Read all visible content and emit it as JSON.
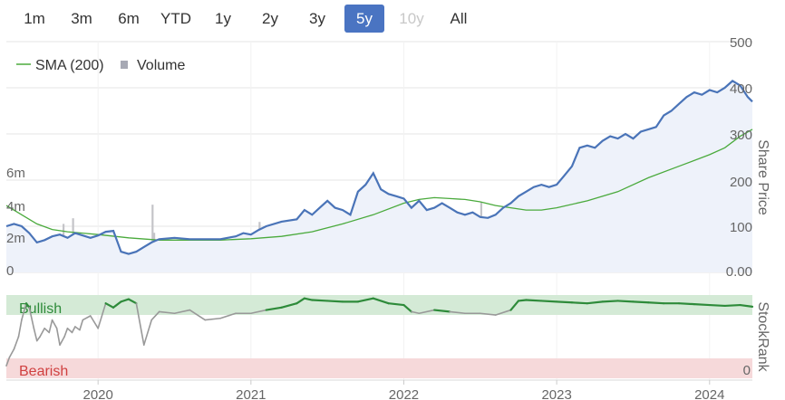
{
  "range_buttons": [
    {
      "label": "1m",
      "state": "normal"
    },
    {
      "label": "3m",
      "state": "normal"
    },
    {
      "label": "6m",
      "state": "normal"
    },
    {
      "label": "YTD",
      "state": "normal"
    },
    {
      "label": "1y",
      "state": "normal"
    },
    {
      "label": "2y",
      "state": "normal"
    },
    {
      "label": "3y",
      "state": "normal"
    },
    {
      "label": "5y",
      "state": "active"
    },
    {
      "label": "10y",
      "state": "disabled"
    },
    {
      "label": "All",
      "state": "normal"
    }
  ],
  "colors": {
    "price": "#4a74b8",
    "sma": "#4aaa3c",
    "volume": "#c4c4c8",
    "stockrank_line": "#999999",
    "stockrank_bullish_line": "#2e8b3a",
    "bullish_band": "#d4ead6",
    "bearish_band": "#f6d9da",
    "bullish_text": "#2e8b3a",
    "bearish_text": "#d04040",
    "active_button": "#4a74c2"
  },
  "chart_data": [
    {
      "type": "line",
      "title": "",
      "legend": [
        "SMA (200)",
        "Volume"
      ],
      "legend_position": "top-left",
      "y_axis_label": "Share Price",
      "y_ticks": [
        "500",
        "400",
        "300",
        "200",
        "100",
        "0.00"
      ],
      "ylim": [
        0,
        500
      ],
      "volume_ticks": [
        "6m",
        "4m",
        "2m",
        "0"
      ],
      "volume_ylim": [
        0,
        8
      ],
      "x_tick_labels": [
        "2020",
        "2021",
        "2022",
        "2023",
        "2024"
      ],
      "x_range": [
        2019.4,
        2024.28
      ],
      "series": [
        {
          "role": "price",
          "x": [
            2019.4,
            2019.45,
            2019.5,
            2019.55,
            2019.6,
            2019.65,
            2019.7,
            2019.75,
            2019.8,
            2019.85,
            2019.9,
            2019.95,
            2020.0,
            2020.05,
            2020.1,
            2020.15,
            2020.2,
            2020.25,
            2020.3,
            2020.35,
            2020.4,
            2020.5,
            2020.6,
            2020.7,
            2020.8,
            2020.9,
            2020.95,
            2021.0,
            2021.05,
            2021.1,
            2021.2,
            2021.3,
            2021.35,
            2021.4,
            2021.45,
            2021.5,
            2021.55,
            2021.6,
            2021.65,
            2021.7,
            2021.75,
            2021.8,
            2021.85,
            2021.9,
            2021.95,
            2022.0,
            2022.05,
            2022.1,
            2022.15,
            2022.2,
            2022.25,
            2022.3,
            2022.35,
            2022.4,
            2022.45,
            2022.5,
            2022.55,
            2022.6,
            2022.65,
            2022.7,
            2022.75,
            2022.8,
            2022.85,
            2022.9,
            2022.95,
            2023.0,
            2023.05,
            2023.1,
            2023.15,
            2023.2,
            2023.25,
            2023.3,
            2023.35,
            2023.4,
            2023.45,
            2023.5,
            2023.55,
            2023.6,
            2023.65,
            2023.7,
            2023.75,
            2023.8,
            2023.85,
            2023.9,
            2023.95,
            2024.0,
            2024.05,
            2024.1,
            2024.15,
            2024.2,
            2024.25,
            2024.28
          ],
          "y": [
            100,
            105,
            100,
            85,
            65,
            70,
            78,
            82,
            75,
            85,
            80,
            75,
            80,
            88,
            90,
            45,
            40,
            45,
            55,
            65,
            72,
            75,
            72,
            72,
            72,
            78,
            85,
            82,
            92,
            100,
            110,
            115,
            135,
            125,
            140,
            155,
            140,
            135,
            125,
            175,
            190,
            215,
            180,
            170,
            165,
            160,
            140,
            155,
            135,
            140,
            150,
            140,
            130,
            125,
            130,
            120,
            118,
            125,
            140,
            150,
            165,
            175,
            185,
            190,
            185,
            190,
            210,
            230,
            270,
            275,
            270,
            285,
            295,
            290,
            300,
            290,
            305,
            310,
            315,
            340,
            350,
            365,
            380,
            390,
            385,
            395,
            390,
            400,
            415,
            405,
            380,
            370
          ]
        },
        {
          "role": "sma",
          "name": "SMA (200)",
          "x": [
            2019.4,
            2019.5,
            2019.6,
            2019.7,
            2019.8,
            2019.9,
            2020.0,
            2020.2,
            2020.4,
            2020.6,
            2020.8,
            2021.0,
            2021.2,
            2021.4,
            2021.6,
            2021.8,
            2022.0,
            2022.1,
            2022.2,
            2022.3,
            2022.4,
            2022.5,
            2022.6,
            2022.7,
            2022.8,
            2022.9,
            2023.0,
            2023.2,
            2023.4,
            2023.6,
            2023.8,
            2024.0,
            2024.1,
            2024.2,
            2024.28
          ],
          "y": [
            145,
            125,
            105,
            93,
            88,
            85,
            82,
            75,
            70,
            70,
            70,
            73,
            78,
            88,
            105,
            125,
            150,
            158,
            162,
            160,
            158,
            153,
            145,
            140,
            135,
            135,
            140,
            155,
            175,
            205,
            230,
            255,
            270,
            295,
            310
          ]
        }
      ]
    },
    {
      "type": "line",
      "title": "",
      "y_axis_label": "StockRank",
      "y_ticks": [
        "0"
      ],
      "bands": [
        "Bullish",
        "Bearish"
      ],
      "x": [
        2019.4,
        2019.42,
        2019.45,
        2019.48,
        2019.5,
        2019.53,
        2019.55,
        2019.58,
        2019.6,
        2019.62,
        2019.65,
        2019.68,
        2019.7,
        2019.73,
        2019.75,
        2019.78,
        2019.8,
        2019.83,
        2019.85,
        2019.88,
        2019.9,
        2019.95,
        2020.0,
        2020.05,
        2020.1,
        2020.15,
        2020.2,
        2020.25,
        2020.3,
        2020.35,
        2020.4,
        2020.5,
        2020.6,
        2020.7,
        2020.8,
        2020.9,
        2021.0,
        2021.1,
        2021.2,
        2021.3,
        2021.35,
        2021.4,
        2021.5,
        2021.6,
        2021.7,
        2021.8,
        2021.9,
        2022.0,
        2022.05,
        2022.1,
        2022.2,
        2022.3,
        2022.4,
        2022.5,
        2022.6,
        2022.7,
        2022.75,
        2022.8,
        2022.9,
        2023.0,
        2023.1,
        2023.2,
        2023.3,
        2023.4,
        2023.5,
        2023.6,
        2023.7,
        2023.8,
        2023.9,
        2024.0,
        2024.1,
        2024.2,
        2024.28
      ],
      "y": [
        15,
        25,
        35,
        50,
        70,
        90,
        85,
        60,
        45,
        50,
        60,
        55,
        70,
        60,
        40,
        50,
        60,
        55,
        62,
        58,
        70,
        75,
        60,
        90,
        85,
        92,
        95,
        90,
        40,
        70,
        80,
        78,
        82,
        70,
        72,
        78,
        78,
        82,
        85,
        90,
        96,
        94,
        93,
        92,
        92,
        96,
        90,
        88,
        80,
        78,
        82,
        80,
        78,
        78,
        76,
        82,
        93,
        94,
        93,
        92,
        91,
        90,
        92,
        93,
        92,
        91,
        90,
        90,
        89,
        88,
        87,
        88,
        86
      ]
    }
  ]
}
